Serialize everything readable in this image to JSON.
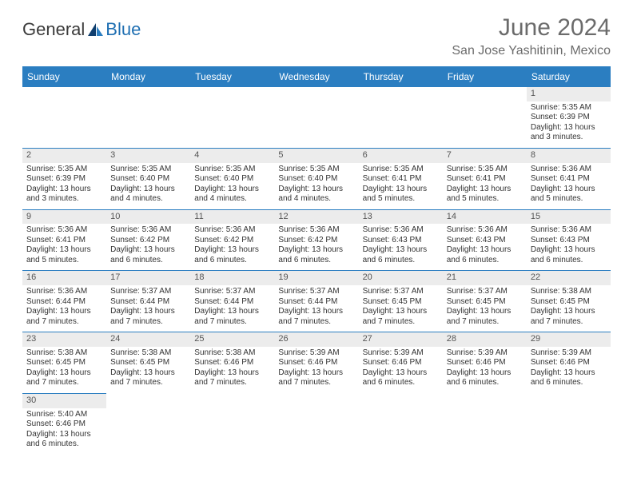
{
  "brand": {
    "part1": "General",
    "part2": "Blue"
  },
  "title": "June 2024",
  "location": "San Jose Yashitinin, Mexico",
  "colors": {
    "header_bg": "#2b7ec1",
    "header_text": "#ffffff",
    "rule": "#2b7ec1",
    "daynum_bg": "#ececec",
    "title_color": "#6b6b6b",
    "brand_blue": "#1f6fb2"
  },
  "typography": {
    "title_fontsize": 30,
    "subtitle_fontsize": 16,
    "cell_fontsize": 10,
    "header_fontsize": 12
  },
  "dayHeaders": [
    "Sunday",
    "Monday",
    "Tuesday",
    "Wednesday",
    "Thursday",
    "Friday",
    "Saturday"
  ],
  "weeks": [
    [
      {
        "empty": true
      },
      {
        "empty": true
      },
      {
        "empty": true
      },
      {
        "empty": true
      },
      {
        "empty": true
      },
      {
        "empty": true
      },
      {
        "n": "1",
        "sr": "Sunrise: 5:35 AM",
        "ss": "Sunset: 6:39 PM",
        "d1": "Daylight: 13 hours",
        "d2": "and 3 minutes."
      }
    ],
    [
      {
        "n": "2",
        "sr": "Sunrise: 5:35 AM",
        "ss": "Sunset: 6:39 PM",
        "d1": "Daylight: 13 hours",
        "d2": "and 3 minutes."
      },
      {
        "n": "3",
        "sr": "Sunrise: 5:35 AM",
        "ss": "Sunset: 6:40 PM",
        "d1": "Daylight: 13 hours",
        "d2": "and 4 minutes."
      },
      {
        "n": "4",
        "sr": "Sunrise: 5:35 AM",
        "ss": "Sunset: 6:40 PM",
        "d1": "Daylight: 13 hours",
        "d2": "and 4 minutes."
      },
      {
        "n": "5",
        "sr": "Sunrise: 5:35 AM",
        "ss": "Sunset: 6:40 PM",
        "d1": "Daylight: 13 hours",
        "d2": "and 4 minutes."
      },
      {
        "n": "6",
        "sr": "Sunrise: 5:35 AM",
        "ss": "Sunset: 6:41 PM",
        "d1": "Daylight: 13 hours",
        "d2": "and 5 minutes."
      },
      {
        "n": "7",
        "sr": "Sunrise: 5:35 AM",
        "ss": "Sunset: 6:41 PM",
        "d1": "Daylight: 13 hours",
        "d2": "and 5 minutes."
      },
      {
        "n": "8",
        "sr": "Sunrise: 5:36 AM",
        "ss": "Sunset: 6:41 PM",
        "d1": "Daylight: 13 hours",
        "d2": "and 5 minutes."
      }
    ],
    [
      {
        "n": "9",
        "sr": "Sunrise: 5:36 AM",
        "ss": "Sunset: 6:41 PM",
        "d1": "Daylight: 13 hours",
        "d2": "and 5 minutes."
      },
      {
        "n": "10",
        "sr": "Sunrise: 5:36 AM",
        "ss": "Sunset: 6:42 PM",
        "d1": "Daylight: 13 hours",
        "d2": "and 6 minutes."
      },
      {
        "n": "11",
        "sr": "Sunrise: 5:36 AM",
        "ss": "Sunset: 6:42 PM",
        "d1": "Daylight: 13 hours",
        "d2": "and 6 minutes."
      },
      {
        "n": "12",
        "sr": "Sunrise: 5:36 AM",
        "ss": "Sunset: 6:42 PM",
        "d1": "Daylight: 13 hours",
        "d2": "and 6 minutes."
      },
      {
        "n": "13",
        "sr": "Sunrise: 5:36 AM",
        "ss": "Sunset: 6:43 PM",
        "d1": "Daylight: 13 hours",
        "d2": "and 6 minutes."
      },
      {
        "n": "14",
        "sr": "Sunrise: 5:36 AM",
        "ss": "Sunset: 6:43 PM",
        "d1": "Daylight: 13 hours",
        "d2": "and 6 minutes."
      },
      {
        "n": "15",
        "sr": "Sunrise: 5:36 AM",
        "ss": "Sunset: 6:43 PM",
        "d1": "Daylight: 13 hours",
        "d2": "and 6 minutes."
      }
    ],
    [
      {
        "n": "16",
        "sr": "Sunrise: 5:36 AM",
        "ss": "Sunset: 6:44 PM",
        "d1": "Daylight: 13 hours",
        "d2": "and 7 minutes."
      },
      {
        "n": "17",
        "sr": "Sunrise: 5:37 AM",
        "ss": "Sunset: 6:44 PM",
        "d1": "Daylight: 13 hours",
        "d2": "and 7 minutes."
      },
      {
        "n": "18",
        "sr": "Sunrise: 5:37 AM",
        "ss": "Sunset: 6:44 PM",
        "d1": "Daylight: 13 hours",
        "d2": "and 7 minutes."
      },
      {
        "n": "19",
        "sr": "Sunrise: 5:37 AM",
        "ss": "Sunset: 6:44 PM",
        "d1": "Daylight: 13 hours",
        "d2": "and 7 minutes."
      },
      {
        "n": "20",
        "sr": "Sunrise: 5:37 AM",
        "ss": "Sunset: 6:45 PM",
        "d1": "Daylight: 13 hours",
        "d2": "and 7 minutes."
      },
      {
        "n": "21",
        "sr": "Sunrise: 5:37 AM",
        "ss": "Sunset: 6:45 PM",
        "d1": "Daylight: 13 hours",
        "d2": "and 7 minutes."
      },
      {
        "n": "22",
        "sr": "Sunrise: 5:38 AM",
        "ss": "Sunset: 6:45 PM",
        "d1": "Daylight: 13 hours",
        "d2": "and 7 minutes."
      }
    ],
    [
      {
        "n": "23",
        "sr": "Sunrise: 5:38 AM",
        "ss": "Sunset: 6:45 PM",
        "d1": "Daylight: 13 hours",
        "d2": "and 7 minutes."
      },
      {
        "n": "24",
        "sr": "Sunrise: 5:38 AM",
        "ss": "Sunset: 6:45 PM",
        "d1": "Daylight: 13 hours",
        "d2": "and 7 minutes."
      },
      {
        "n": "25",
        "sr": "Sunrise: 5:38 AM",
        "ss": "Sunset: 6:46 PM",
        "d1": "Daylight: 13 hours",
        "d2": "and 7 minutes."
      },
      {
        "n": "26",
        "sr": "Sunrise: 5:39 AM",
        "ss": "Sunset: 6:46 PM",
        "d1": "Daylight: 13 hours",
        "d2": "and 7 minutes."
      },
      {
        "n": "27",
        "sr": "Sunrise: 5:39 AM",
        "ss": "Sunset: 6:46 PM",
        "d1": "Daylight: 13 hours",
        "d2": "and 6 minutes."
      },
      {
        "n": "28",
        "sr": "Sunrise: 5:39 AM",
        "ss": "Sunset: 6:46 PM",
        "d1": "Daylight: 13 hours",
        "d2": "and 6 minutes."
      },
      {
        "n": "29",
        "sr": "Sunrise: 5:39 AM",
        "ss": "Sunset: 6:46 PM",
        "d1": "Daylight: 13 hours",
        "d2": "and 6 minutes."
      }
    ],
    [
      {
        "n": "30",
        "sr": "Sunrise: 5:40 AM",
        "ss": "Sunset: 6:46 PM",
        "d1": "Daylight: 13 hours",
        "d2": "and 6 minutes."
      },
      {
        "empty": true
      },
      {
        "empty": true
      },
      {
        "empty": true
      },
      {
        "empty": true
      },
      {
        "empty": true
      },
      {
        "empty": true
      }
    ]
  ]
}
